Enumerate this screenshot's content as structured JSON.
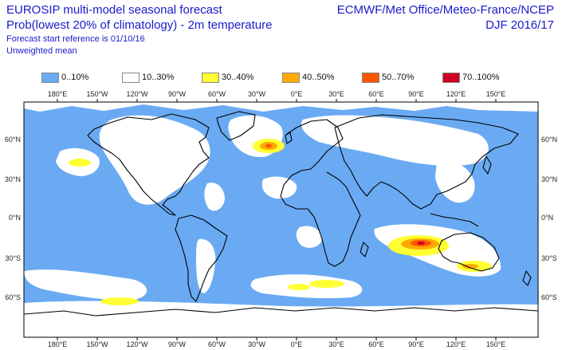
{
  "header": {
    "left_line1": "EUROSIP multi-model seasonal forecast",
    "left_line2": "Prob(lowest 20% of climatology) - 2m temperature",
    "left_line3": "Forecast start reference is 01/10/16",
    "left_line4": "Unweighted mean",
    "right_line1": "ECMWF/Met Office/Meteo-France/NCEP",
    "right_line2": "DJF 2016/17"
  },
  "legend": [
    {
      "label": "0..10%",
      "color": "#6aaaf2"
    },
    {
      "label": "10..30%",
      "color": "#ffffff"
    },
    {
      "label": "30..40%",
      "color": "#ffff33"
    },
    {
      "label": "40..50%",
      "color": "#ffaa00"
    },
    {
      "label": "50..70%",
      "color": "#ff5500"
    },
    {
      "label": "70..100%",
      "color": "#cc0022"
    }
  ],
  "axes": {
    "lon_ticks": [
      "180°E",
      "150°W",
      "120°W",
      "90°W",
      "60°W",
      "30°W",
      "0°E",
      "30°E",
      "60°E",
      "90°E",
      "120°E",
      "150°E"
    ],
    "lat_ticks_left": [
      "60°N",
      "30°N",
      "0°N",
      "30°S",
      "60°S"
    ],
    "lat_ticks_right": [
      "60°N",
      "30°N",
      "0°N",
      "30°S",
      "60°S"
    ]
  },
  "colors": {
    "ocean": "#6aaaf2",
    "land_text": "#1a1acc",
    "coastline": "#000000"
  }
}
